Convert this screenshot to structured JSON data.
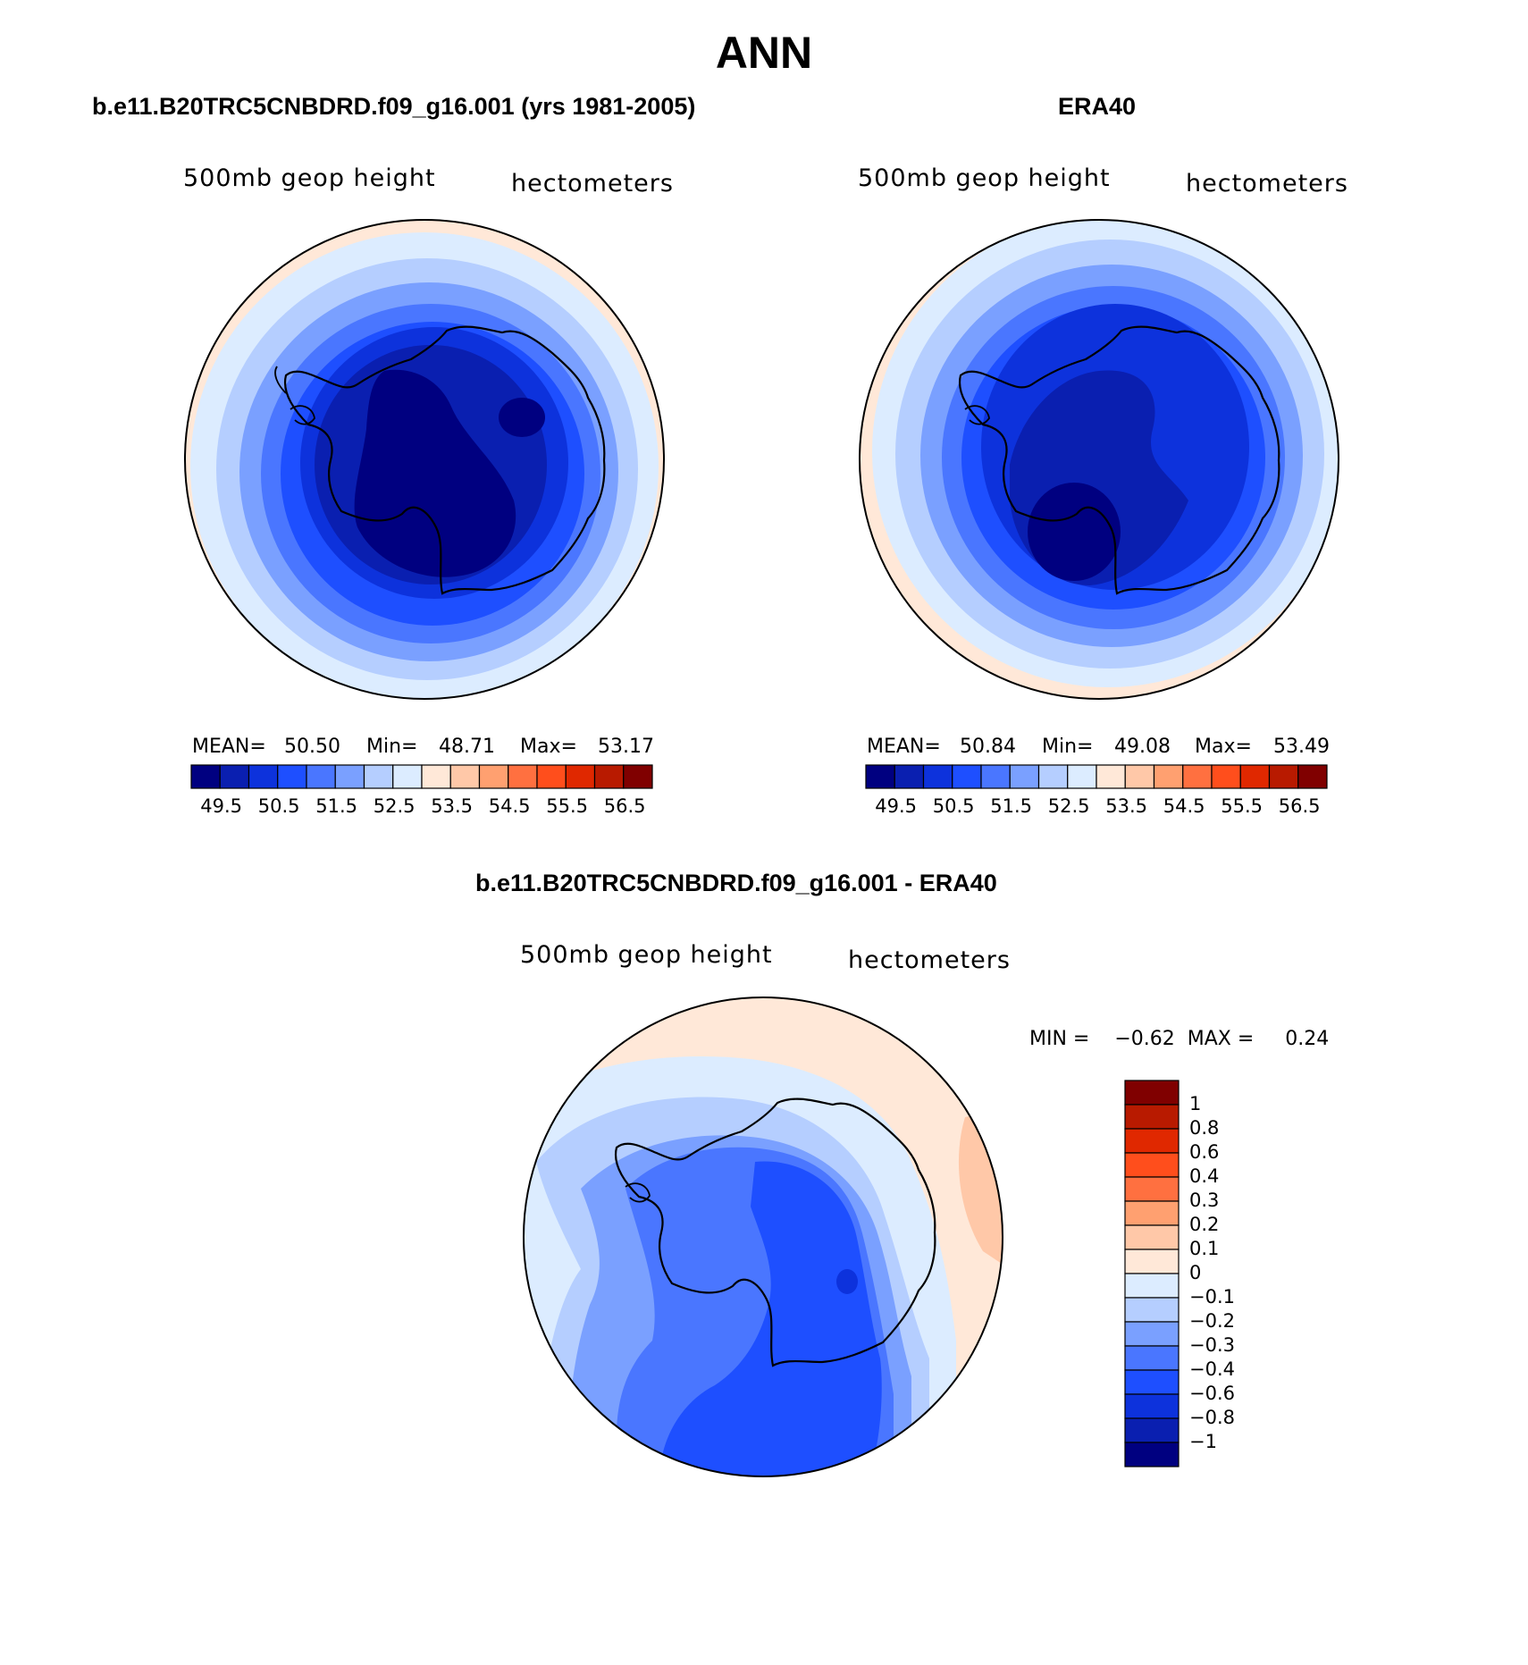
{
  "title": "ANN",
  "panels": {
    "model": {
      "title": "b.e11.B20TRC5CNBDRD.f09_g16.001 (yrs 1981-2005)",
      "left_label": "500mb geop height",
      "right_label": "hectometers",
      "mean_label": "MEAN=",
      "mean": "50.50",
      "min_label": "Min=",
      "min": "48.71",
      "max_label": "Max=",
      "max": "53.17"
    },
    "obs": {
      "title": "ERA40",
      "left_label": "500mb geop height",
      "right_label": "hectometers",
      "mean_label": "MEAN=",
      "mean": "50.84",
      "min_label": "Min=",
      "min": "49.08",
      "max_label": "Max=",
      "max": "53.49"
    },
    "diff": {
      "title": "b.e11.B20TRC5CNBDRD.f09_g16.001 - ERA40",
      "left_label": "500mb geop height",
      "right_label": "hectometers",
      "minmax_text": "MIN =    −0.62  MAX =     0.24"
    }
  },
  "chart_data": [
    {
      "type": "heatmap",
      "name": "model",
      "projection": "south polar stereographic",
      "units": "hectometers",
      "colorbar_levels": [
        "49.5",
        "50.5",
        "51.5",
        "52.5",
        "53.5",
        "54.5",
        "55.5",
        "56.5"
      ],
      "colorbar_boundaries": [
        49.5,
        50,
        50.5,
        51,
        51.5,
        52,
        52.5,
        53,
        53.5,
        54,
        54.5,
        55,
        55.5,
        56,
        56.5
      ],
      "colors": [
        "#000080",
        "#0a1fb0",
        "#0d32dc",
        "#1e4fff",
        "#4a76ff",
        "#7aa0ff",
        "#b5ceff",
        "#dcecff",
        "#ffe8d8",
        "#ffc8a8",
        "#ffa070",
        "#ff7040",
        "#ff4e1c",
        "#e02800",
        "#b81a00",
        "#800000"
      ]
    },
    {
      "type": "heatmap",
      "name": "obs",
      "projection": "south polar stereographic",
      "units": "hectometers",
      "colorbar_levels": [
        "49.5",
        "50.5",
        "51.5",
        "52.5",
        "53.5",
        "54.5",
        "55.5",
        "56.5"
      ],
      "colorbar_boundaries": [
        49.5,
        50,
        50.5,
        51,
        51.5,
        52,
        52.5,
        53,
        53.5,
        54,
        54.5,
        55,
        55.5,
        56,
        56.5
      ],
      "colors": [
        "#000080",
        "#0a1fb0",
        "#0d32dc",
        "#1e4fff",
        "#4a76ff",
        "#7aa0ff",
        "#b5ceff",
        "#dcecff",
        "#ffe8d8",
        "#ffc8a8",
        "#ffa070",
        "#ff7040",
        "#ff4e1c",
        "#e02800",
        "#b81a00",
        "#800000"
      ]
    },
    {
      "type": "heatmap",
      "name": "diff",
      "projection": "south polar stereographic",
      "units": "hectometers",
      "colorbar_levels": [
        "1",
        "0.8",
        "0.6",
        "0.4",
        "0.3",
        "0.2",
        "0.1",
        "0",
        "−0.1",
        "−0.2",
        "−0.3",
        "−0.4",
        "−0.6",
        "−0.8",
        "−1"
      ],
      "colors": [
        "#800000",
        "#b81a00",
        "#e02800",
        "#ff4e1c",
        "#ff7040",
        "#ffa070",
        "#ffc8a8",
        "#ffe8d8",
        "#dcecff",
        "#b5ceff",
        "#7aa0ff",
        "#4a76ff",
        "#1e4fff",
        "#0d32dc",
        "#0a1fb0",
        "#000080"
      ]
    }
  ]
}
